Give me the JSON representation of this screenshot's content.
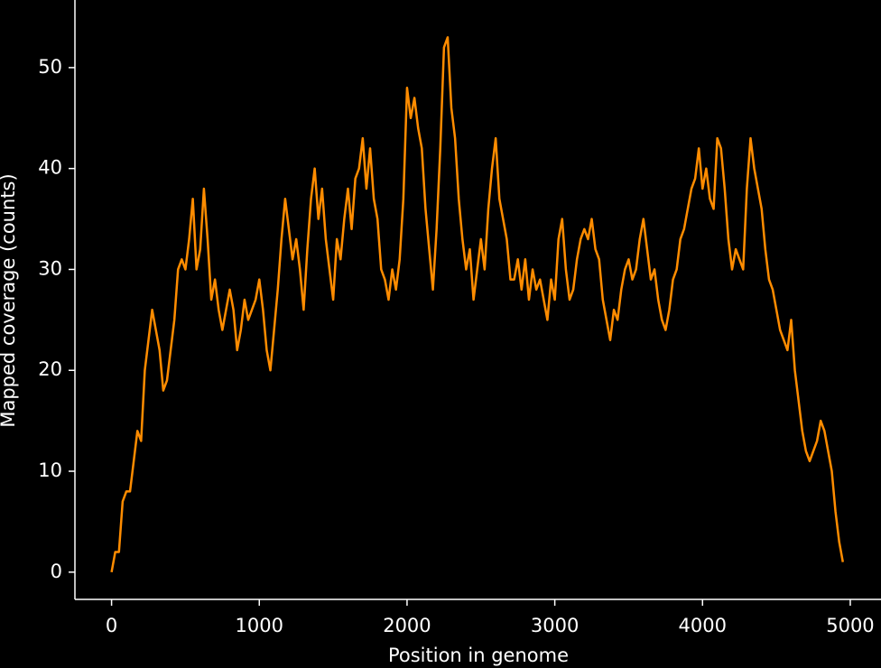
{
  "chart_data": {
    "type": "line",
    "x_label": "Position in genome",
    "y_label": "Mapped coverage (counts)",
    "x": [
      0,
      25,
      50,
      75,
      100,
      125,
      150,
      175,
      200,
      225,
      250,
      275,
      300,
      325,
      350,
      375,
      400,
      425,
      450,
      475,
      500,
      525,
      550,
      575,
      600,
      625,
      650,
      675,
      700,
      725,
      750,
      775,
      800,
      825,
      850,
      875,
      900,
      925,
      950,
      975,
      1000,
      1025,
      1050,
      1075,
      1100,
      1125,
      1150,
      1175,
      1200,
      1225,
      1250,
      1275,
      1300,
      1325,
      1350,
      1375,
      1400,
      1425,
      1450,
      1475,
      1500,
      1525,
      1550,
      1575,
      1600,
      1625,
      1650,
      1675,
      1700,
      1725,
      1750,
      1775,
      1800,
      1825,
      1850,
      1875,
      1900,
      1925,
      1950,
      1975,
      2000,
      2025,
      2050,
      2075,
      2100,
      2125,
      2150,
      2175,
      2200,
      2225,
      2250,
      2275,
      2300,
      2325,
      2350,
      2375,
      2400,
      2425,
      2450,
      2475,
      2500,
      2525,
      2550,
      2575,
      2600,
      2625,
      2650,
      2675,
      2700,
      2725,
      2750,
      2775,
      2800,
      2825,
      2850,
      2875,
      2900,
      2925,
      2950,
      2975,
      3000,
      3025,
      3050,
      3075,
      3100,
      3125,
      3150,
      3175,
      3200,
      3225,
      3250,
      3275,
      3300,
      3325,
      3350,
      3375,
      3400,
      3425,
      3450,
      3475,
      3500,
      3525,
      3550,
      3575,
      3600,
      3625,
      3650,
      3675,
      3700,
      3725,
      3750,
      3775,
      3800,
      3825,
      3850,
      3875,
      3900,
      3925,
      3950,
      3975,
      4000,
      4025,
      4050,
      4075,
      4100,
      4125,
      4150,
      4175,
      4200,
      4225,
      4250,
      4275,
      4300,
      4325,
      4350,
      4375,
      4400,
      4425,
      4450,
      4475,
      4500,
      4525,
      4550,
      4575,
      4600,
      4625,
      4650,
      4675,
      4700,
      4725,
      4750,
      4775,
      4800,
      4825,
      4850,
      4875,
      4900,
      4925,
      4950
    ],
    "series": [
      {
        "color": "#ff8c00",
        "values": [
          0,
          2,
          2,
          7,
          8,
          8,
          11,
          14,
          13,
          20,
          23,
          26,
          24,
          22,
          18,
          19,
          22,
          25,
          30,
          31,
          30,
          33,
          37,
          30,
          32,
          38,
          33,
          27,
          29,
          26,
          24,
          26,
          28,
          26,
          22,
          24,
          27,
          25,
          26,
          27,
          29,
          26,
          22,
          20,
          24,
          28,
          33,
          37,
          34,
          31,
          33,
          30,
          26,
          32,
          37,
          40,
          35,
          38,
          33,
          30,
          27,
          33,
          31,
          35,
          38,
          34,
          39,
          40,
          43,
          38,
          42,
          37,
          35,
          30,
          29,
          27,
          30,
          28,
          31,
          37,
          48,
          45,
          47,
          44,
          42,
          36,
          32,
          28,
          34,
          42,
          52,
          53,
          46,
          43,
          37,
          33,
          30,
          32,
          27,
          30,
          33,
          30,
          36,
          40,
          43,
          37,
          35,
          33,
          29,
          29,
          31,
          28,
          31,
          27,
          30,
          28,
          29,
          27,
          25,
          29,
          27,
          33,
          35,
          30,
          27,
          28,
          31,
          33,
          34,
          33,
          35,
          32,
          31,
          27,
          25,
          23,
          26,
          25,
          28,
          30,
          31,
          29,
          30,
          33,
          35,
          32,
          29,
          30,
          27,
          25,
          24,
          26,
          29,
          30,
          33,
          34,
          36,
          38,
          39,
          42,
          38,
          40,
          37,
          36,
          43,
          42,
          38,
          33,
          30,
          32,
          31,
          30,
          38,
          43,
          40,
          38,
          36,
          32,
          29,
          28,
          26,
          24,
          23,
          22,
          25,
          20,
          17,
          14,
          12,
          11,
          12,
          13,
          15,
          14,
          12,
          10,
          6,
          3,
          1
        ]
      }
    ],
    "xlim": [
      -248,
      5208
    ],
    "ylim": [
      -2.7,
      56.7
    ],
    "xticks": [
      0,
      1000,
      2000,
      3000,
      4000,
      5000
    ],
    "yticks": [
      0,
      10,
      20,
      30,
      40,
      50
    ],
    "grid": false
  }
}
